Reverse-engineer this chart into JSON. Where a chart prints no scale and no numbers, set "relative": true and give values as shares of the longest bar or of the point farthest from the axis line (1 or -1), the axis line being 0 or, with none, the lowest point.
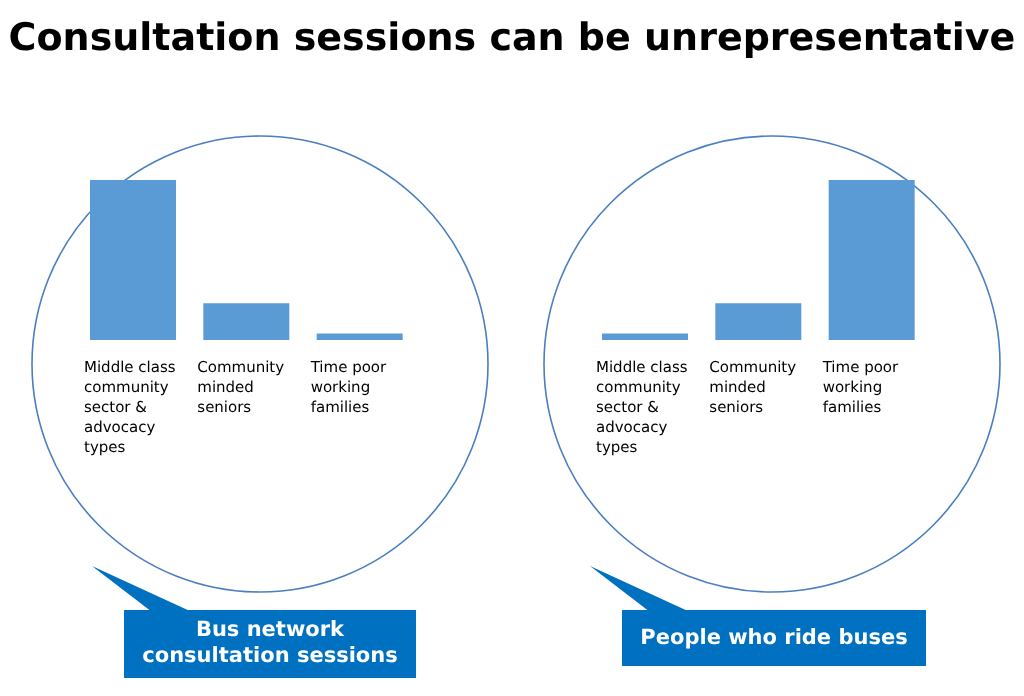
{
  "chart_data": [
    {
      "type": "bar",
      "title": "Consultation sessions can be unrepresentative",
      "categories": [
        "Middle class community sector & advocacy types",
        "Community minded seniors",
        "Time poor working families"
      ],
      "values": [
        1,
        0.23,
        0.04
      ],
      "color": "#5b9bd5",
      "relative": true,
      "annotations": [
        "Bus network consultation sessions"
      ]
    },
    {
      "type": "bar",
      "categories": [
        "Middle class community sector & advocacy types",
        "Community minded seniors",
        "Time poor working families"
      ],
      "values": [
        0.04,
        0.23,
        1
      ],
      "color": "#5b9bd5",
      "relative": true,
      "annotations": [
        "People who ride buses"
      ]
    }
  ]
}
